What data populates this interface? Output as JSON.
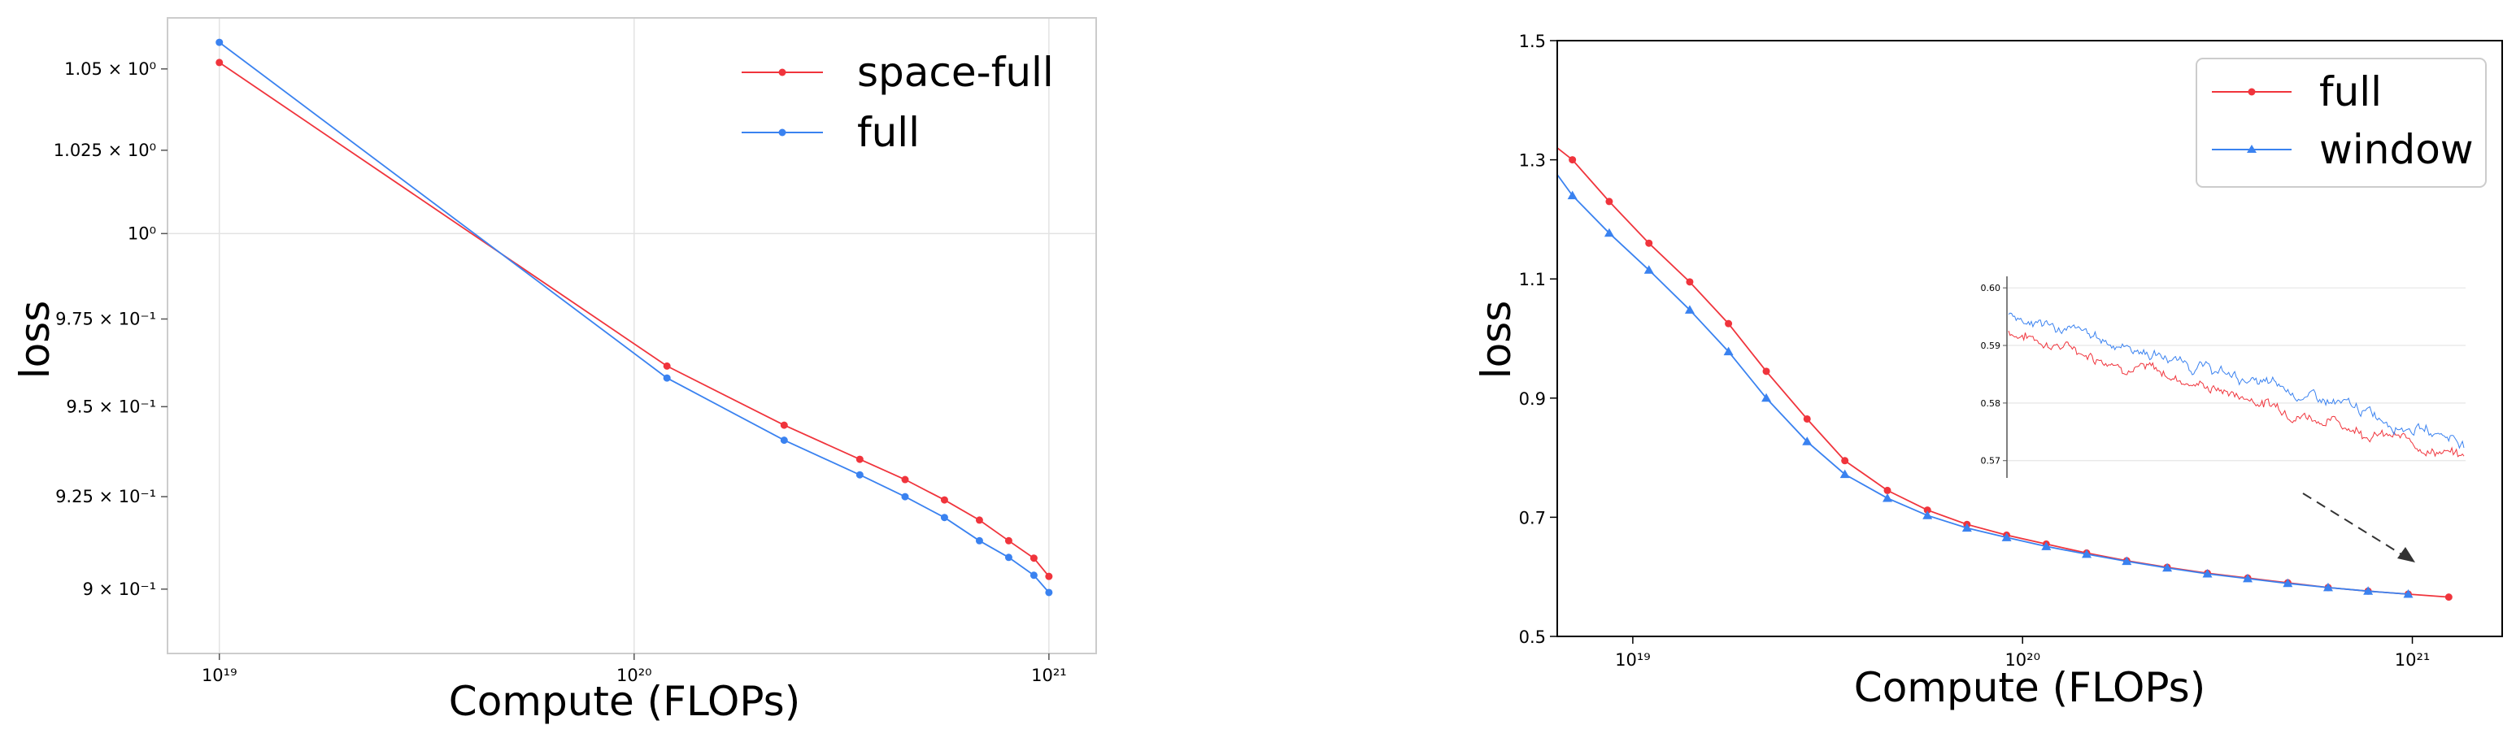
{
  "chart_data": [
    {
      "type": "line",
      "title": "",
      "xlabel": "Compute (FLOPs)",
      "ylabel": "loss",
      "x_scale": "log",
      "y_scale": "log",
      "xlim": [
        7.5e+18,
        1.3e+21
      ],
      "ylim": [
        0.883,
        1.066
      ],
      "grid": true,
      "legend_position": "top-right",
      "x_ticks": [
        {
          "value": 1e+19,
          "label": "10¹⁹"
        },
        {
          "value": 1e+20,
          "label": "10²⁰"
        },
        {
          "value": 1e+21,
          "label": "10²¹"
        }
      ],
      "y_ticks": [
        {
          "value": 1.05,
          "label": "1.05 × 10⁰"
        },
        {
          "value": 1.025,
          "label": "1.025 × 10⁰"
        },
        {
          "value": 1.0,
          "label": "10⁰"
        },
        {
          "value": 0.975,
          "label": "9.75 × 10⁻¹"
        },
        {
          "value": 0.95,
          "label": "9.5 × 10⁻¹"
        },
        {
          "value": 0.925,
          "label": "9.25 × 10⁻¹"
        },
        {
          "value": 0.9,
          "label": "9 × 10⁻¹"
        }
      ],
      "series": [
        {
          "name": "space-full",
          "color": "#f0343c",
          "marker": "circle",
          "x": [
            1e+19,
            1.2e+20,
            2.3e+20,
            3.5e+20,
            4.5e+20,
            5.6e+20,
            6.8e+20,
            8e+20,
            9.2e+20,
            1e+21
          ],
          "y": [
            1.052,
            0.9615,
            0.9448,
            0.9353,
            0.9297,
            0.9241,
            0.9186,
            0.913,
            0.9083,
            0.9034
          ]
        },
        {
          "name": "full",
          "color": "#3a82f0",
          "marker": "circle",
          "x": [
            1e+19,
            1.2e+20,
            2.3e+20,
            3.5e+20,
            4.5e+20,
            5.6e+20,
            6.8e+20,
            8e+20,
            9.2e+20,
            1e+21
          ],
          "y": [
            1.0583,
            0.9581,
            0.9406,
            0.931,
            0.925,
            0.9193,
            0.913,
            0.9085,
            0.9037,
            0.8991
          ]
        }
      ]
    },
    {
      "type": "line",
      "title": "",
      "xlabel": "Compute (FLOPs)",
      "ylabel": "loss",
      "x_scale": "log",
      "y_scale": "linear",
      "xlim": [
        6.4e+18,
        1.7e+21
      ],
      "ylim": [
        0.5,
        1.5
      ],
      "grid": false,
      "legend_position": "top-right",
      "x_ticks": [
        {
          "value": 1e+19,
          "label": "10¹⁹"
        },
        {
          "value": 1e+20,
          "label": "10²⁰"
        },
        {
          "value": 1e+21,
          "label": "10²¹"
        }
      ],
      "y_ticks": [
        {
          "value": 0.5,
          "label": "0.5"
        },
        {
          "value": 0.7,
          "label": "0.7"
        },
        {
          "value": 0.9,
          "label": "0.9"
        },
        {
          "value": 1.1,
          "label": "1.1"
        },
        {
          "value": 1.3,
          "label": "1.3"
        },
        {
          "value": 1.5,
          "label": "1.5"
        }
      ],
      "series": [
        {
          "name": "full",
          "color": "#f0343c",
          "marker": "circle",
          "x": [
            6.4e+18,
            7e+18,
            8.7e+18,
            1.1e+19,
            1.4e+19,
            1.76e+19,
            2.2e+19,
            2.8e+19,
            3.5e+19,
            4.5e+19,
            5.7e+19,
            7.2e+19,
            9.1e+19,
            1.15e+20,
            1.46e+20,
            1.85e+20,
            2.35e+20,
            2.98e+20,
            3.78e+20,
            4.79e+20,
            6.08e+20,
            7.7e+20,
            9.76e+20,
            1.24e+21
          ],
          "y": [
            1.32,
            1.3,
            1.23,
            1.16,
            1.095,
            1.025,
            0.945,
            0.865,
            0.795,
            0.745,
            0.712,
            0.688,
            0.67,
            0.655,
            0.64,
            0.627,
            0.616,
            0.606,
            0.598,
            0.59,
            0.582,
            0.576,
            0.571,
            0.566
          ]
        },
        {
          "name": "window",
          "color": "#3a82f0",
          "marker": "triangle",
          "x": [
            6.4e+18,
            7e+18,
            8.7e+18,
            1.1e+19,
            1.4e+19,
            1.76e+19,
            2.2e+19,
            2.8e+19,
            3.5e+19,
            4.5e+19,
            5.7e+19,
            7.2e+19,
            9.1e+19,
            1.15e+20,
            1.46e+20,
            1.85e+20,
            2.35e+20,
            2.98e+20,
            3.78e+20,
            4.79e+20,
            6.08e+20,
            7.7e+20,
            9.76e+20
          ],
          "y": [
            1.275,
            1.24,
            1.177,
            1.115,
            1.048,
            0.978,
            0.9,
            0.827,
            0.772,
            0.732,
            0.703,
            0.682,
            0.666,
            0.651,
            0.638,
            0.626,
            0.615,
            0.605,
            0.597,
            0.589,
            0.582,
            0.576,
            0.571
          ]
        }
      ],
      "inset": {
        "ylim": [
          0.567,
          0.602
        ],
        "y_ticks": [
          {
            "value": 0.6,
            "label": "0.60"
          },
          {
            "value": 0.59,
            "label": "0.59"
          },
          {
            "value": 0.58,
            "label": "0.58"
          },
          {
            "value": 0.57,
            "label": "0.57"
          }
        ],
        "series": [
          {
            "name": "full",
            "color": "#f0343c",
            "start": 0.5925,
            "end": 0.5705
          },
          {
            "name": "window",
            "color": "#3a82f0",
            "start": 0.5955,
            "end": 0.5735
          }
        ]
      }
    }
  ]
}
